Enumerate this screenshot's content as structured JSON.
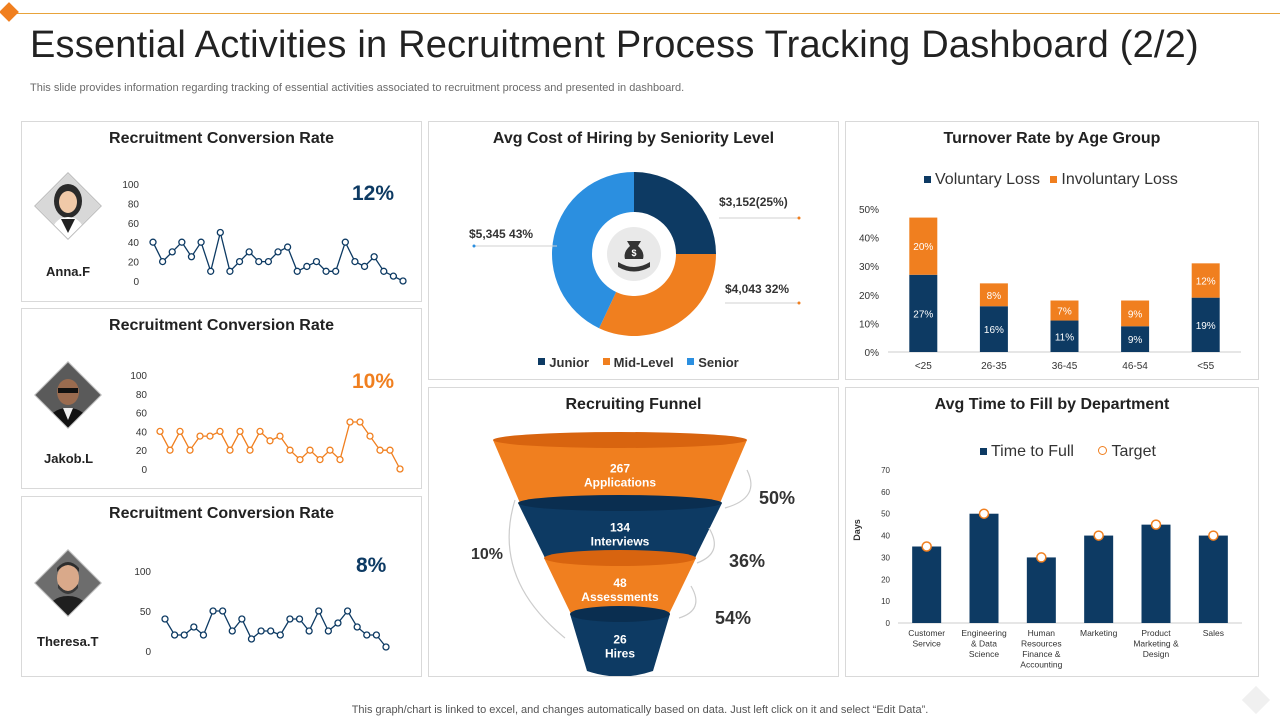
{
  "header": {
    "title": "Essential Activities in Recruitment Process Tracking Dashboard (2/2)",
    "subtitle": "This slide provides information regarding tracking of essential activities associated to recruitment process and presented in dashboard."
  },
  "footer": {
    "note": "This graph/chart is linked to excel, and changes automatically based on data. Just left click on it and select “Edit Data”."
  },
  "colors": {
    "navy": "#0d3a63",
    "orange": "#f07f1f",
    "blue": "#2b8fe0"
  },
  "chart_data": [
    {
      "id": "conv1",
      "type": "line",
      "title": "Recruitment Conversion Rate",
      "person": "Anna.F",
      "person_icon": "woman-avatar",
      "rate": "12%",
      "color": "#0d3a63",
      "ylim": [
        0,
        100
      ],
      "yticks": [
        "100",
        "80",
        "60",
        "40",
        "20",
        "0"
      ],
      "values": [
        40,
        20,
        30,
        40,
        25,
        40,
        10,
        50,
        10,
        20,
        30,
        20,
        20,
        30,
        35,
        10,
        15,
        20,
        10,
        10,
        40,
        20,
        15,
        25,
        10,
        5,
        0
      ]
    },
    {
      "id": "conv2",
      "type": "line",
      "title": "Recruitment Conversion Rate",
      "person": "Jakob.L",
      "person_icon": "man-sunglasses-avatar",
      "rate": "10%",
      "color": "#f07f1f",
      "ylim": [
        0,
        100
      ],
      "yticks": [
        "100",
        "80",
        "60",
        "40",
        "20",
        "0"
      ],
      "values": [
        40,
        20,
        40,
        20,
        35,
        35,
        40,
        20,
        40,
        20,
        40,
        30,
        35,
        20,
        10,
        20,
        10,
        20,
        10,
        50,
        50,
        35,
        20,
        20,
        0
      ]
    },
    {
      "id": "conv3",
      "type": "line",
      "title": "Recruitment Conversion Rate",
      "person": "Theresa.T",
      "person_icon": "man-beard-avatar",
      "rate": "8%",
      "color": "#0d3a63",
      "ylim": [
        0,
        100
      ],
      "yticks": [
        "100",
        "50",
        "0"
      ],
      "values": [
        40,
        20,
        20,
        30,
        20,
        50,
        50,
        25,
        40,
        15,
        25,
        25,
        20,
        40,
        40,
        25,
        50,
        25,
        35,
        50,
        30,
        20,
        20,
        5
      ]
    },
    {
      "id": "cost",
      "type": "pie",
      "title": "Avg Cost of Hiring by Seniority Level",
      "center_icon": "money-bag-hand-icon",
      "slices": [
        {
          "name": "Junior",
          "value": 25,
          "label": "$3,152(25%)",
          "color": "#0d3a63"
        },
        {
          "name": "Mid-Level",
          "value": 32,
          "label": "$4,043  32%",
          "color": "#f07f1f"
        },
        {
          "name": "Senior",
          "value": 43,
          "label": "$5,345  43%",
          "color": "#2b8fe0"
        }
      ]
    },
    {
      "id": "turnover",
      "type": "bar",
      "title": "Turnover Rate by Age Group",
      "categories": [
        "<25",
        "26-35",
        "36-45",
        "46-54",
        "<55"
      ],
      "series": [
        {
          "name": "Voluntary Loss",
          "color": "#0d3a63",
          "values": [
            27,
            16,
            11,
            9,
            19
          ],
          "labels": [
            "27%",
            "16%",
            "11%",
            "9%",
            "19%"
          ]
        },
        {
          "name": "Involuntary Loss",
          "color": "#f07f1f",
          "values": [
            20,
            8,
            7,
            9,
            12
          ],
          "labels": [
            "20%",
            "8%",
            "7%",
            "9%",
            "12%"
          ]
        }
      ],
      "ylim": [
        0,
        50
      ],
      "yticks": [
        "0%",
        "10%",
        "20%",
        "30%",
        "40%",
        "50%"
      ]
    },
    {
      "id": "funnel",
      "type": "funnel",
      "title": "Recruiting Funnel",
      "stages": [
        {
          "value": "267",
          "name": "Applications",
          "color": "#f07f1f"
        },
        {
          "value": "134",
          "name": "Interviews",
          "color": "#0d3a63"
        },
        {
          "value": "48",
          "name": "Assessments",
          "color": "#f07f1f"
        },
        {
          "value": "26",
          "name": "Hires",
          "color": "#0d3a63"
        }
      ],
      "conversions": [
        "50%",
        "36%",
        "54%"
      ],
      "overall": "10%"
    },
    {
      "id": "timetofill",
      "type": "bar",
      "title": "Avg Time to Fill by Department",
      "ylabel": "Days",
      "categories": [
        [
          "Customer",
          "Service"
        ],
        [
          "Engineering",
          "& Data",
          "Science"
        ],
        [
          "Human",
          "Resources",
          "Finance &",
          "Accounting"
        ],
        [
          "Marketing"
        ],
        [
          "Product",
          "Marketing &",
          "Design"
        ],
        [
          "Sales"
        ]
      ],
      "series": [
        {
          "name": "Time to Full",
          "color": "#0d3a63",
          "values": [
            35,
            50,
            30,
            40,
            45,
            40
          ]
        },
        {
          "name": "Target",
          "color": "#f07f1f",
          "values": [
            35,
            50,
            30,
            40,
            45,
            40
          ]
        }
      ],
      "ylim": [
        0,
        70
      ],
      "yticks": [
        "0",
        "10",
        "20",
        "30",
        "40",
        "50",
        "60",
        "70"
      ]
    }
  ]
}
